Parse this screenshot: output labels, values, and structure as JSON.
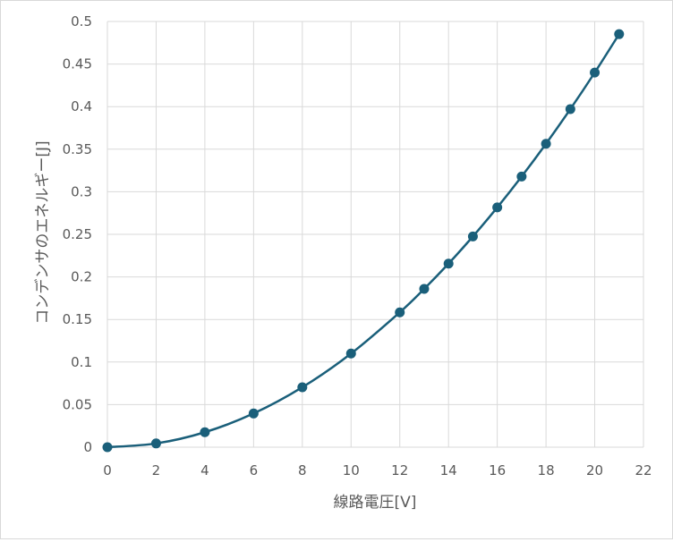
{
  "chart_data": {
    "type": "line",
    "title": "",
    "xlabel": "線路電圧[V]",
    "ylabel": "コンデンサのエネルギー[J]",
    "xlim": [
      0,
      22
    ],
    "ylim": [
      0,
      0.5
    ],
    "x_ticks": [
      "0",
      "2",
      "4",
      "6",
      "8",
      "10",
      "12",
      "14",
      "16",
      "18",
      "20",
      "22"
    ],
    "y_ticks": [
      "0",
      "0.05",
      "0.1",
      "0.15",
      "0.2",
      "0.25",
      "0.3",
      "0.35",
      "0.4",
      "0.45",
      "0.5"
    ],
    "grid": true,
    "legend": "none",
    "series": [
      {
        "color": "#1a5f7a",
        "x": [
          0,
          2,
          4,
          6,
          8,
          10,
          12,
          13,
          14,
          15,
          16,
          17,
          18,
          19,
          20,
          21
        ],
        "y": [
          0,
          0.0044,
          0.0176,
          0.0396,
          0.0704,
          0.11,
          0.1584,
          0.1859,
          0.2156,
          0.2475,
          0.2816,
          0.3179,
          0.3564,
          0.3971,
          0.44,
          0.4851
        ]
      }
    ]
  }
}
